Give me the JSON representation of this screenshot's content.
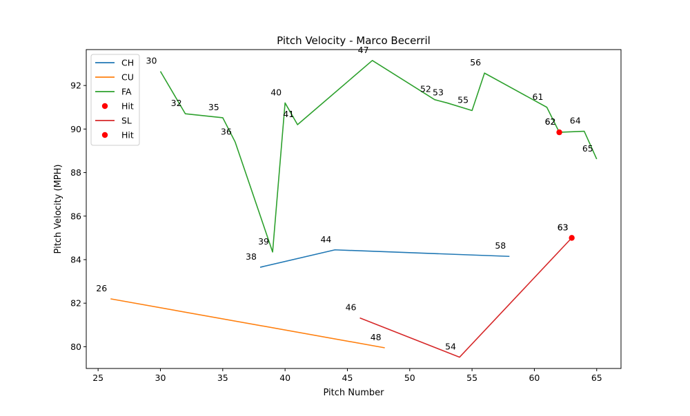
{
  "chart_data": {
    "type": "line",
    "title": "Pitch Velocity - Marco Becerril",
    "xlabel": "Pitch Number",
    "ylabel": "Pitch Velocity (MPH)",
    "xlim": [
      24.05,
      66.95
    ],
    "ylim": [
      79.0,
      93.65
    ],
    "xticks": [
      25,
      30,
      35,
      40,
      45,
      50,
      55,
      60,
      65
    ],
    "yticks": [
      80,
      82,
      84,
      86,
      88,
      90,
      92
    ],
    "legend_position": "top-left",
    "series": [
      {
        "name": "CH",
        "color": "#1f77b4",
        "x": [
          38,
          44,
          58
        ],
        "y": [
          83.65,
          84.45,
          84.15
        ]
      },
      {
        "name": "CU",
        "color": "#ff7f0e",
        "x": [
          26,
          48
        ],
        "y": [
          82.2,
          79.95
        ]
      },
      {
        "name": "FA",
        "color": "#2ca02c",
        "x": [
          30,
          32,
          35,
          36,
          39,
          40,
          41,
          47,
          52,
          53,
          55,
          56,
          61,
          62,
          64,
          65
        ],
        "y": [
          92.65,
          90.7,
          90.52,
          89.4,
          84.35,
          91.2,
          90.2,
          93.15,
          91.35,
          91.2,
          90.85,
          92.57,
          91.0,
          89.85,
          89.9,
          88.62
        ]
      },
      {
        "name": "SL",
        "color": "#d62728",
        "x": [
          46,
          54,
          63
        ],
        "y": [
          81.32,
          79.52,
          85.0
        ]
      }
    ],
    "hits": [
      {
        "name": "Hit",
        "color": "#ff0000",
        "x": 62,
        "y": 89.85
      },
      {
        "name": "Hit",
        "color": "#ff0000",
        "x": 63,
        "y": 85.0
      }
    ],
    "legend_entries": [
      {
        "label": "CH",
        "kind": "line",
        "color": "#1f77b4"
      },
      {
        "label": "CU",
        "kind": "line",
        "color": "#ff7f0e"
      },
      {
        "label": "FA",
        "kind": "line",
        "color": "#2ca02c"
      },
      {
        "label": "Hit",
        "kind": "marker",
        "color": "#ff0000"
      },
      {
        "label": "SL",
        "kind": "line",
        "color": "#d62728"
      },
      {
        "label": "Hit",
        "kind": "marker",
        "color": "#ff0000"
      }
    ]
  }
}
